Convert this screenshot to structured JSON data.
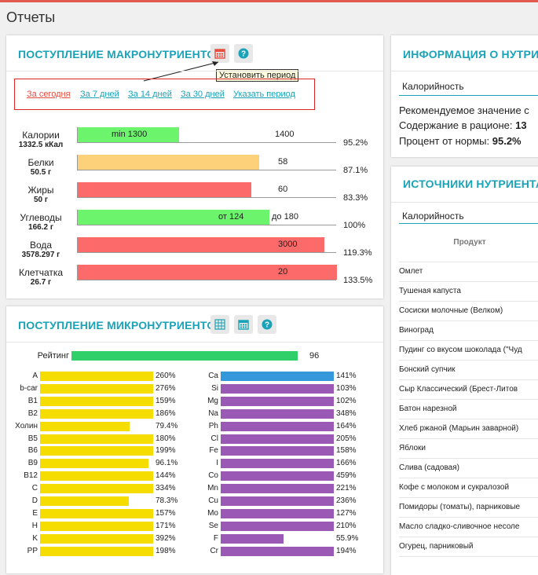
{
  "page_title": "Отчеты",
  "macro": {
    "title": "ПОСТУПЛЕНИЕ МАКРОНУТРИЕНТОВ",
    "tooltip": "Установить период",
    "periods": [
      "За сегодня",
      "За 7 дней",
      "За 14 дней",
      "За 30 дней",
      "Указать период"
    ],
    "rows": [
      {
        "name": "Калории",
        "value": "1332.5 кКал",
        "fill": 0.39,
        "color": "#6cf46c",
        "mid_label": "min 1300",
        "end_label": "1400",
        "pct": "95.2%"
      },
      {
        "name": "Белки",
        "value": "50.5 г",
        "fill": 0.7,
        "color": "#fdd17a",
        "mid_label": "",
        "end_label": "58",
        "pct": "87.1%"
      },
      {
        "name": "Жиры",
        "value": "50 г",
        "fill": 0.67,
        "color": "#fc6a6a",
        "mid_label": "",
        "end_label": "60",
        "pct": "83.3%"
      },
      {
        "name": "Углеводы",
        "value": "166.2 г",
        "fill": 0.74,
        "color": "#6cf46c",
        "mid_label": "от 124",
        "end_label": "до 180",
        "pct": "100%"
      },
      {
        "name": "Вода",
        "value": "3578.297 г",
        "fill": 0.95,
        "color": "#fc6a6a",
        "mid_label": "",
        "end_label": "3000",
        "pct": "119.3%"
      },
      {
        "name": "Клетчатка",
        "value": "26.7 г",
        "fill": 1.0,
        "color": "#fc6a6a",
        "mid_label": "",
        "end_label": "20",
        "pct": "133.5%"
      }
    ]
  },
  "micro": {
    "title": "ПОСТУПЛЕНИЕ МИКРОНУТРИЕНТОВ",
    "rating_label": "Рейтинг",
    "rating_value": "96",
    "rating_fill": 0.96,
    "rating_color": "#2fcf6a",
    "left_color": "#f5dd00",
    "right_color": "#9b59b6",
    "right_top_color": "#3498db",
    "left": [
      {
        "name": "A",
        "pct": "260%",
        "fill": 1.0
      },
      {
        "name": "b-car",
        "pct": "276%",
        "fill": 1.0
      },
      {
        "name": "B1",
        "pct": "159%",
        "fill": 1.0
      },
      {
        "name": "B2",
        "pct": "186%",
        "fill": 1.0
      },
      {
        "name": "Холин",
        "pct": "79.4%",
        "fill": 0.794
      },
      {
        "name": "B5",
        "pct": "180%",
        "fill": 1.0
      },
      {
        "name": "B6",
        "pct": "199%",
        "fill": 1.0
      },
      {
        "name": "B9",
        "pct": "96.1%",
        "fill": 0.961
      },
      {
        "name": "B12",
        "pct": "144%",
        "fill": 1.0
      },
      {
        "name": "C",
        "pct": "334%",
        "fill": 1.0
      },
      {
        "name": "D",
        "pct": "78.3%",
        "fill": 0.783
      },
      {
        "name": "E",
        "pct": "157%",
        "fill": 1.0
      },
      {
        "name": "H",
        "pct": "171%",
        "fill": 1.0
      },
      {
        "name": "K",
        "pct": "392%",
        "fill": 1.0
      },
      {
        "name": "PP",
        "pct": "198%",
        "fill": 1.0
      }
    ],
    "right": [
      {
        "name": "Ca",
        "pct": "141%",
        "fill": 1.0
      },
      {
        "name": "Si",
        "pct": "103%",
        "fill": 1.0
      },
      {
        "name": "Mg",
        "pct": "102%",
        "fill": 1.0
      },
      {
        "name": "Na",
        "pct": "348%",
        "fill": 1.0
      },
      {
        "name": "Ph",
        "pct": "164%",
        "fill": 1.0
      },
      {
        "name": "Cl",
        "pct": "205%",
        "fill": 1.0
      },
      {
        "name": "Fe",
        "pct": "158%",
        "fill": 1.0
      },
      {
        "name": "I",
        "pct": "166%",
        "fill": 1.0
      },
      {
        "name": "Co",
        "pct": "459%",
        "fill": 1.0
      },
      {
        "name": "Mn",
        "pct": "221%",
        "fill": 1.0
      },
      {
        "name": "Cu",
        "pct": "236%",
        "fill": 1.0
      },
      {
        "name": "Mo",
        "pct": "127%",
        "fill": 1.0
      },
      {
        "name": "Se",
        "pct": "210%",
        "fill": 1.0
      },
      {
        "name": "F",
        "pct": "55.9%",
        "fill": 0.559
      },
      {
        "name": "Cr",
        "pct": "194%",
        "fill": 1.0
      }
    ]
  },
  "info": {
    "title": "ИНФОРМАЦИЯ О НУТРИЕН",
    "nutrient": "Калорийность",
    "line1": "Рекомендуемое значение с",
    "line2_label": "Содержание в рационе:",
    "line2_value": "13",
    "line3_label": "Процент от нормы:",
    "line3_value": "95.2%"
  },
  "sources": {
    "title": "ИСТОЧНИКИ НУТРИЕНТА",
    "nutrient": "Калорийность",
    "column_header": "Продукт",
    "items": [
      "Омлет",
      "Тушеная капуста",
      "Сосиски молочные (Велком)",
      "Виноград",
      "Пудинг со вкусом шоколада (\"Чуд",
      "Бонский супчик",
      "Сыр Классический (Брест-Литов",
      "Батон нарезной",
      "Хлеб ржаной (Марьин заварной)",
      "Яблоки",
      "Слива (садовая)",
      "Кофе с молоком и сукралозой",
      "Помидоры (томаты), парниковые",
      "Масло сладко-сливочное несоле",
      "Огурец, парниковый"
    ]
  }
}
